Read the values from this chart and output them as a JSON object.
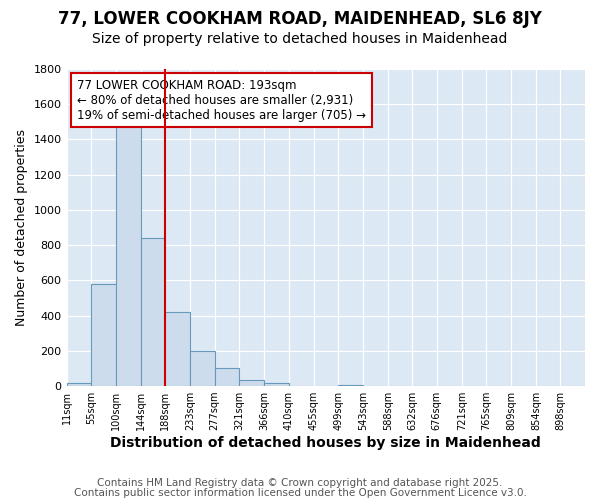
{
  "title_line1": "77, LOWER COOKHAM ROAD, MAIDENHEAD, SL6 8JY",
  "title_line2": "Size of property relative to detached houses in Maidenhead",
  "xlabel": "Distribution of detached houses by size in Maidenhead",
  "ylabel": "Number of detached properties",
  "bar_labels": [
    "11sqm",
    "55sqm",
    "100sqm",
    "144sqm",
    "188sqm",
    "233sqm",
    "277sqm",
    "321sqm",
    "366sqm",
    "410sqm",
    "455sqm",
    "499sqm",
    "543sqm",
    "588sqm",
    "632sqm",
    "676sqm",
    "721sqm",
    "765sqm",
    "809sqm",
    "854sqm",
    "898sqm"
  ],
  "bar_values": [
    15,
    580,
    1470,
    840,
    420,
    200,
    100,
    35,
    15,
    0,
    0,
    5,
    0,
    0,
    0,
    0,
    0,
    0,
    0,
    0,
    0
  ],
  "bin_edges": [
    11,
    55,
    100,
    144,
    188,
    233,
    277,
    321,
    366,
    410,
    455,
    499,
    543,
    588,
    632,
    676,
    721,
    765,
    809,
    854,
    898,
    942
  ],
  "bar_color": "#cddcec",
  "bar_edge_color": "#6699bb",
  "red_line_x": 188,
  "ylim": [
    0,
    1800
  ],
  "yticks": [
    0,
    200,
    400,
    600,
    800,
    1000,
    1200,
    1400,
    1600,
    1800
  ],
  "annotation_box_text": "77 LOWER COOKHAM ROAD: 193sqm\n← 80% of detached houses are smaller (2,931)\n19% of semi-detached houses are larger (705) →",
  "annotation_box_color": "#ffffff",
  "annotation_box_edge_color": "#cc0000",
  "footer_line1": "Contains HM Land Registry data © Crown copyright and database right 2025.",
  "footer_line2": "Contains public sector information licensed under the Open Government Licence v3.0.",
  "fig_bg_color": "#ffffff",
  "plot_bg_color": "#dce8f4",
  "grid_color": "#ffffff",
  "title_fontsize": 12,
  "subtitle_fontsize": 10,
  "footer_fontsize": 7.5,
  "xlabel_fontsize": 10,
  "ylabel_fontsize": 9
}
